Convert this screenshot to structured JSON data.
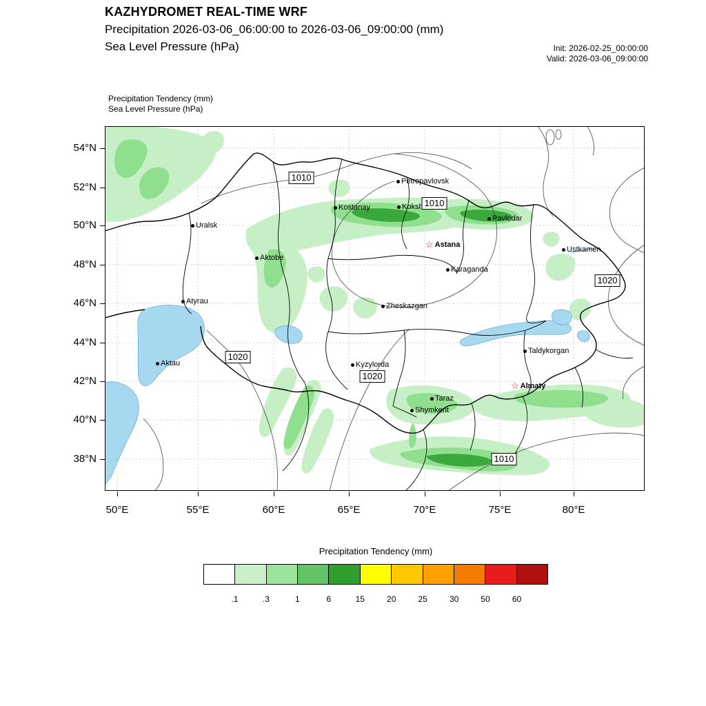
{
  "header": {
    "title": "KAZHYDROMET REAL-TIME WRF",
    "subtitle1": "Precipitation 2026-03-06_06:00:00 to 2026-03-06_09:00:00 (mm)",
    "subtitle2": "Sea Level Pressure  (hPa)",
    "init": "Init: 2026-02-25_00:00:00",
    "valid": "Valid: 2026-03-06_09:00:00"
  },
  "legend": {
    "line1": "Precipitation Tendency   (mm)",
    "line2": "Sea Level Pressure   (hPa)"
  },
  "axes": {
    "lat_labels": [
      "54°N",
      "52°N",
      "50°N",
      "48°N",
      "46°N",
      "44°N",
      "42°N",
      "40°N",
      "38°N"
    ],
    "lon_labels": [
      "50°E",
      "55°E",
      "60°E",
      "65°E",
      "70°E",
      "75°E",
      "80°E"
    ]
  },
  "map": {
    "cities": [
      {
        "name": "Uralsk"
      },
      {
        "name": "Petropavlovsk"
      },
      {
        "name": "Kostanay"
      },
      {
        "name": "Kokshetau"
      },
      {
        "name": "Pavlodar"
      },
      {
        "name": "Astana"
      },
      {
        "name": "Aktobe"
      },
      {
        "name": "Ustkamen"
      },
      {
        "name": "Karaganda"
      },
      {
        "name": "Atyrau"
      },
      {
        "name": "Zheskazgan"
      },
      {
        "name": "Aktau"
      },
      {
        "name": "Taldykorgan"
      },
      {
        "name": "Kyzylorda"
      },
      {
        "name": "Almaty"
      },
      {
        "name": "Taraz"
      },
      {
        "name": "Shymkent"
      }
    ],
    "pressure_labels": [
      "1010",
      "1010",
      "1020",
      "1020",
      "1020",
      "1010"
    ]
  },
  "colorbar": {
    "title": "Precipitation Tendency (mm)",
    "ticks": [
      ".1",
      ".3",
      "1",
      "6",
      "15",
      "20",
      "25",
      "30",
      "50",
      "60"
    ],
    "colors": [
      "#ffffff",
      "#c9f0c9",
      "#9ce39c",
      "#63c463",
      "#2f9e2f",
      "#ffff00",
      "#ffc800",
      "#ffa000",
      "#f57a00",
      "#e81c1c",
      "#b01010"
    ]
  },
  "colors": {
    "water": "#a6d9f0",
    "precip_light": "#c6efc6",
    "precip_medium": "#8fdf8f",
    "precip_dark": "#3aa83a",
    "capital_star": "#e00000"
  }
}
